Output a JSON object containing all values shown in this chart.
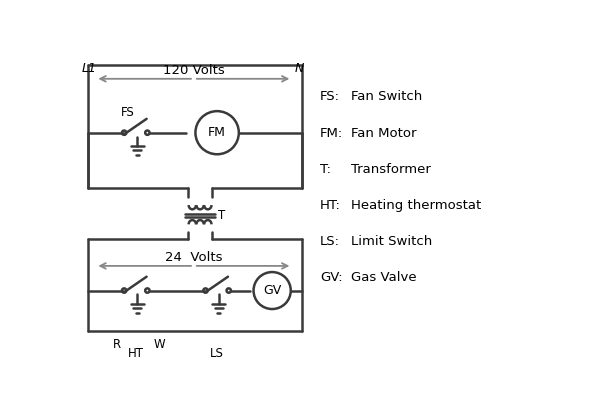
{
  "background_color": "#ffffff",
  "line_color": "#3a3a3a",
  "arrow_color": "#888888",
  "text_color": "#000000",
  "legend_items": [
    [
      "FS:",
      "Fan Switch"
    ],
    [
      "FM:",
      "Fan Motor"
    ],
    [
      "T:",
      "Transformer"
    ],
    [
      "HT:",
      "Heating thermostat"
    ],
    [
      "LS:",
      "Limit Switch"
    ],
    [
      "GV:",
      "Gas Valve"
    ]
  ],
  "figsize": [
    5.9,
    4.0
  ],
  "dpi": 100
}
